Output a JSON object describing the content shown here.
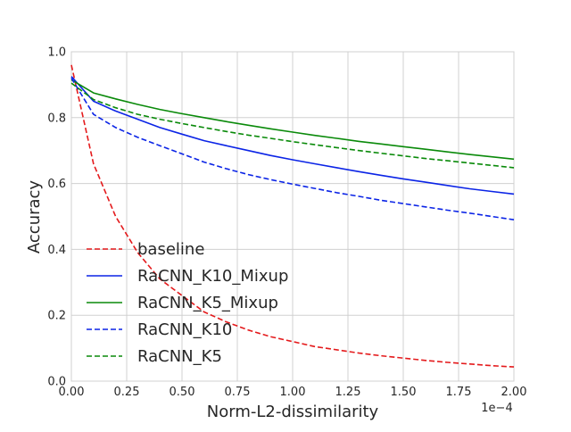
{
  "chart_data": {
    "type": "line",
    "title": "",
    "xlabel": "Norm-L2-dissimilarity",
    "ylabel": "Accuracy",
    "x_offset_text": "1e−4",
    "xlim": [
      0,
      2
    ],
    "ylim": [
      0,
      1
    ],
    "xticks": [
      0,
      0.25,
      0.5,
      0.75,
      1.0,
      1.25,
      1.5,
      1.75,
      2.0
    ],
    "xtick_labels": [
      "0.00",
      "0.25",
      "0.50",
      "0.75",
      "1.00",
      "1.25",
      "1.50",
      "1.75",
      "2.00"
    ],
    "yticks": [
      0,
      0.2,
      0.4,
      0.6,
      0.8,
      1.0
    ],
    "ytick_labels": [
      "0.0",
      "0.2",
      "0.4",
      "0.6",
      "0.8",
      "1.0"
    ],
    "grid": true,
    "legend_position": "lower-left",
    "x": [
      0,
      0.1,
      0.2,
      0.3,
      0.4,
      0.5,
      0.6,
      0.7,
      0.8,
      0.9,
      1.0,
      1.1,
      1.2,
      1.3,
      1.4,
      1.5,
      1.6,
      1.7,
      1.8,
      1.9,
      2.0
    ],
    "series": [
      {
        "name": "baseline",
        "color": "#e41a1c",
        "dash": "dashed",
        "x": [
          0,
          0.1,
          0.2,
          0.3,
          0.4,
          0.5,
          0.6,
          0.7,
          0.8,
          0.9,
          1.0,
          1.1,
          1.2,
          1.3,
          1.4,
          1.5,
          1.6,
          1.7,
          1.8,
          1.9,
          2.0
        ],
        "values": [
          0.96,
          0.66,
          0.5,
          0.39,
          0.31,
          0.26,
          0.21,
          0.18,
          0.155,
          0.135,
          0.12,
          0.105,
          0.095,
          0.085,
          0.077,
          0.07,
          0.063,
          0.057,
          0.052,
          0.047,
          0.043
        ]
      },
      {
        "name": "RaCNN_K10_Mixup",
        "color": "#0b24e6",
        "dash": "solid",
        "x": [
          0,
          0.1,
          0.2,
          0.3,
          0.4,
          0.5,
          0.6,
          0.7,
          0.8,
          0.9,
          1.0,
          1.1,
          1.2,
          1.3,
          1.4,
          1.5,
          1.6,
          1.7,
          1.8,
          1.9,
          2.0
        ],
        "values": [
          0.925,
          0.85,
          0.82,
          0.795,
          0.77,
          0.75,
          0.73,
          0.715,
          0.7,
          0.685,
          0.672,
          0.66,
          0.648,
          0.636,
          0.625,
          0.614,
          0.604,
          0.594,
          0.584,
          0.576,
          0.568
        ]
      },
      {
        "name": "RaCNN_K5_Mixup",
        "color": "#0a8a0a",
        "dash": "solid",
        "x": [
          0,
          0.1,
          0.2,
          0.3,
          0.4,
          0.5,
          0.6,
          0.7,
          0.8,
          0.9,
          1.0,
          1.1,
          1.2,
          1.3,
          1.4,
          1.5,
          1.6,
          1.7,
          1.8,
          1.9,
          2.0
        ],
        "values": [
          0.915,
          0.875,
          0.857,
          0.84,
          0.825,
          0.812,
          0.8,
          0.788,
          0.777,
          0.766,
          0.756,
          0.746,
          0.737,
          0.728,
          0.72,
          0.712,
          0.704,
          0.696,
          0.688,
          0.681,
          0.674
        ]
      },
      {
        "name": "RaCNN_K10",
        "color": "#0b24e6",
        "dash": "dashed",
        "x": [
          0,
          0.1,
          0.2,
          0.3,
          0.4,
          0.5,
          0.6,
          0.7,
          0.8,
          0.9,
          1.0,
          1.1,
          1.2,
          1.3,
          1.4,
          1.5,
          1.6,
          1.7,
          1.8,
          1.9,
          2.0
        ],
        "values": [
          0.92,
          0.81,
          0.77,
          0.74,
          0.715,
          0.69,
          0.665,
          0.645,
          0.627,
          0.612,
          0.598,
          0.585,
          0.572,
          0.561,
          0.549,
          0.539,
          0.529,
          0.519,
          0.51,
          0.5,
          0.49
        ]
      },
      {
        "name": "RaCNN_K5",
        "color": "#0a8a0a",
        "dash": "dashed",
        "x": [
          0,
          0.1,
          0.2,
          0.3,
          0.4,
          0.5,
          0.6,
          0.7,
          0.8,
          0.9,
          1.0,
          1.1,
          1.2,
          1.3,
          1.4,
          1.5,
          1.6,
          1.7,
          1.8,
          1.9,
          2.0
        ],
        "values": [
          0.905,
          0.855,
          0.83,
          0.81,
          0.795,
          0.782,
          0.77,
          0.758,
          0.747,
          0.737,
          0.727,
          0.718,
          0.709,
          0.7,
          0.692,
          0.684,
          0.676,
          0.669,
          0.662,
          0.655,
          0.648
        ]
      }
    ]
  }
}
